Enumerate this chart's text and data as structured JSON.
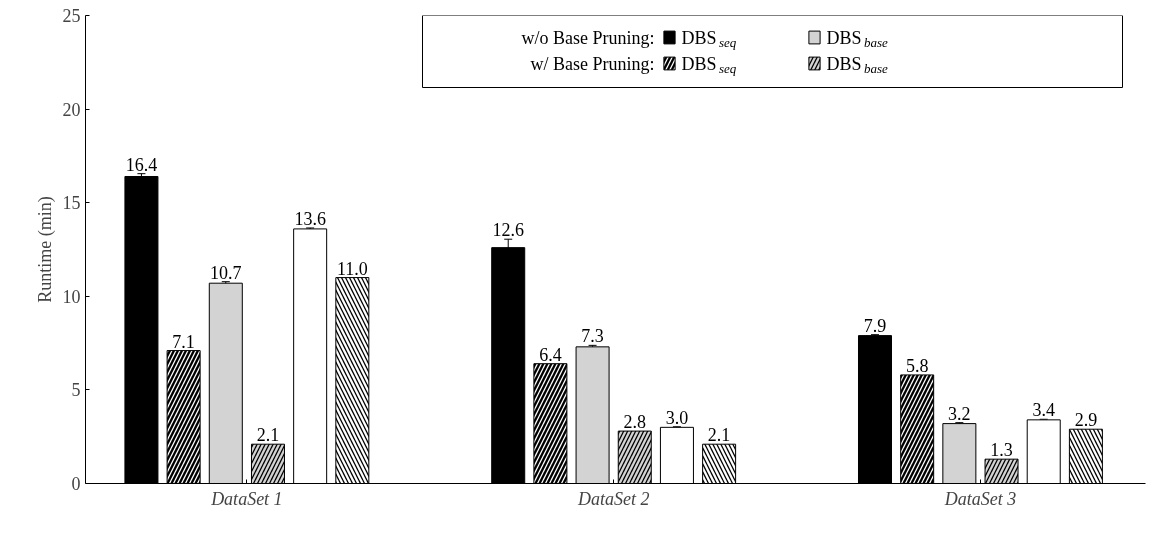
{
  "chart_data": {
    "type": "bar",
    "ylabel": "Runtime (min)",
    "categories": [
      "DataSet 1",
      "DataSet 2",
      "DataSet 3"
    ],
    "series": [
      {
        "name": "DBS$_{seq}$",
        "color": "#000000",
        "values": [
          16.4,
          12.6,
          7.9
        ],
        "value_labels": [
          "16.4",
          "12.6",
          "7.9"
        ],
        "errors": [
          0.15,
          0.45,
          0.05
        ]
      },
      {
        "name": "DBS$_{seq}$",
        "color": "#000000",
        "values": [
          7.1,
          6.4,
          5.8
        ],
        "value_labels": [
          "7.1",
          "6.4",
          "5.8"
        ]
      },
      {
        "name": "DBS$_{base}$",
        "color": "#d3d3d3",
        "values": [
          10.7,
          7.3,
          3.2
        ],
        "value_labels": [
          "10.7",
          "7.3",
          "3.2"
        ],
        "errors": [
          0.08,
          0.08,
          0.05
        ]
      },
      {
        "name": "DBS$_{base}$",
        "color": "#d3d3d3",
        "values": [
          2.1,
          2.8,
          1.3
        ],
        "value_labels": [
          "2.1",
          "2.8",
          "1.3"
        ]
      },
      {
        "color": "#ffffff",
        "values": [
          13.6,
          3.0,
          3.4
        ],
        "value_labels": [
          "13.6",
          "3.0",
          "3.4"
        ],
        "errors": [
          0.05,
          0.03,
          0.03
        ]
      },
      {
        "color": "#ffffff",
        "values": [
          11.0,
          2.1,
          2.9
        ],
        "value_labels": [
          "11.0",
          "2.1",
          "2.9"
        ]
      }
    ],
    "annotations": [
      "w/o Base Pruning:",
      "w/ Base Pruning:"
    ],
    "ylim": [
      0,
      25
    ],
    "yticks": [
      0,
      5,
      10,
      15,
      20,
      25
    ],
    "grid": false,
    "legend": "top right"
  }
}
